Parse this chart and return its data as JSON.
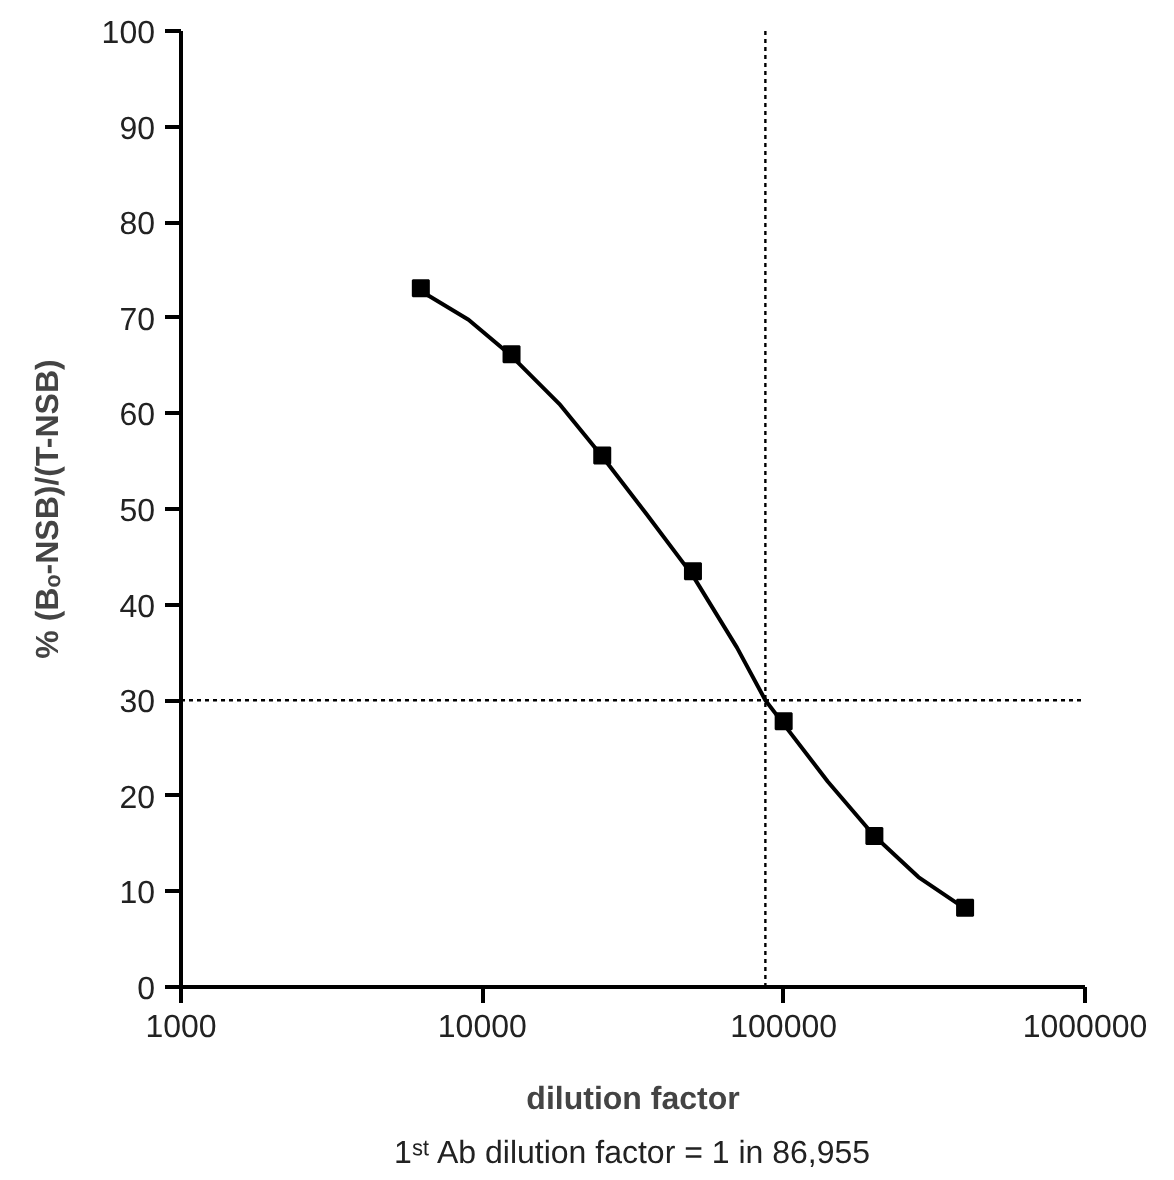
{
  "chart_data": {
    "type": "scatter",
    "xlabel": "dilution factor",
    "ylabel": "% (Bₒ-NSB)/(T-NSB)",
    "annotations": [
      "1ˢᵗ Ab dilution factor = 1 in 86,955"
    ],
    "log": "x",
    "xlim": [
      1000,
      1000000
    ],
    "xticks": [
      1000,
      10000,
      100000,
      1000000
    ],
    "ylim": [
      0,
      100
    ],
    "yticks": [
      0,
      10,
      20,
      30,
      40,
      50,
      60,
      70,
      80,
      90,
      100
    ],
    "grid": false,
    "series": [
      {
        "color": "#000000",
        "marker": "square",
        "x": [
          6250,
          12500,
          25000,
          50000,
          100000,
          200000,
          400000
        ],
        "values": [
          73.1,
          66.2,
          55.6,
          43.5,
          27.8,
          15.8,
          8.3
        ]
      },
      {
        "type": "line",
        "color": "#000000",
        "marker": "none",
        "line_style": "solid",
        "x": [
          6250,
          9000,
          12500,
          18000,
          25000,
          35000,
          50000,
          70000,
          86955,
          100000,
          140000,
          200000,
          280000,
          400000
        ],
        "values": [
          72.8,
          69.8,
          66,
          61,
          55.5,
          49.5,
          43,
          35.5,
          30,
          27.5,
          21.5,
          15.8,
          11.5,
          8.2
        ]
      }
    ],
    "ref_lines": [
      {
        "axis": "x",
        "value": 86955,
        "color": "#000000",
        "line_style": "dotted"
      },
      {
        "axis": "y",
        "value": 30,
        "color": "#000000",
        "line_style": "dotted"
      }
    ]
  }
}
